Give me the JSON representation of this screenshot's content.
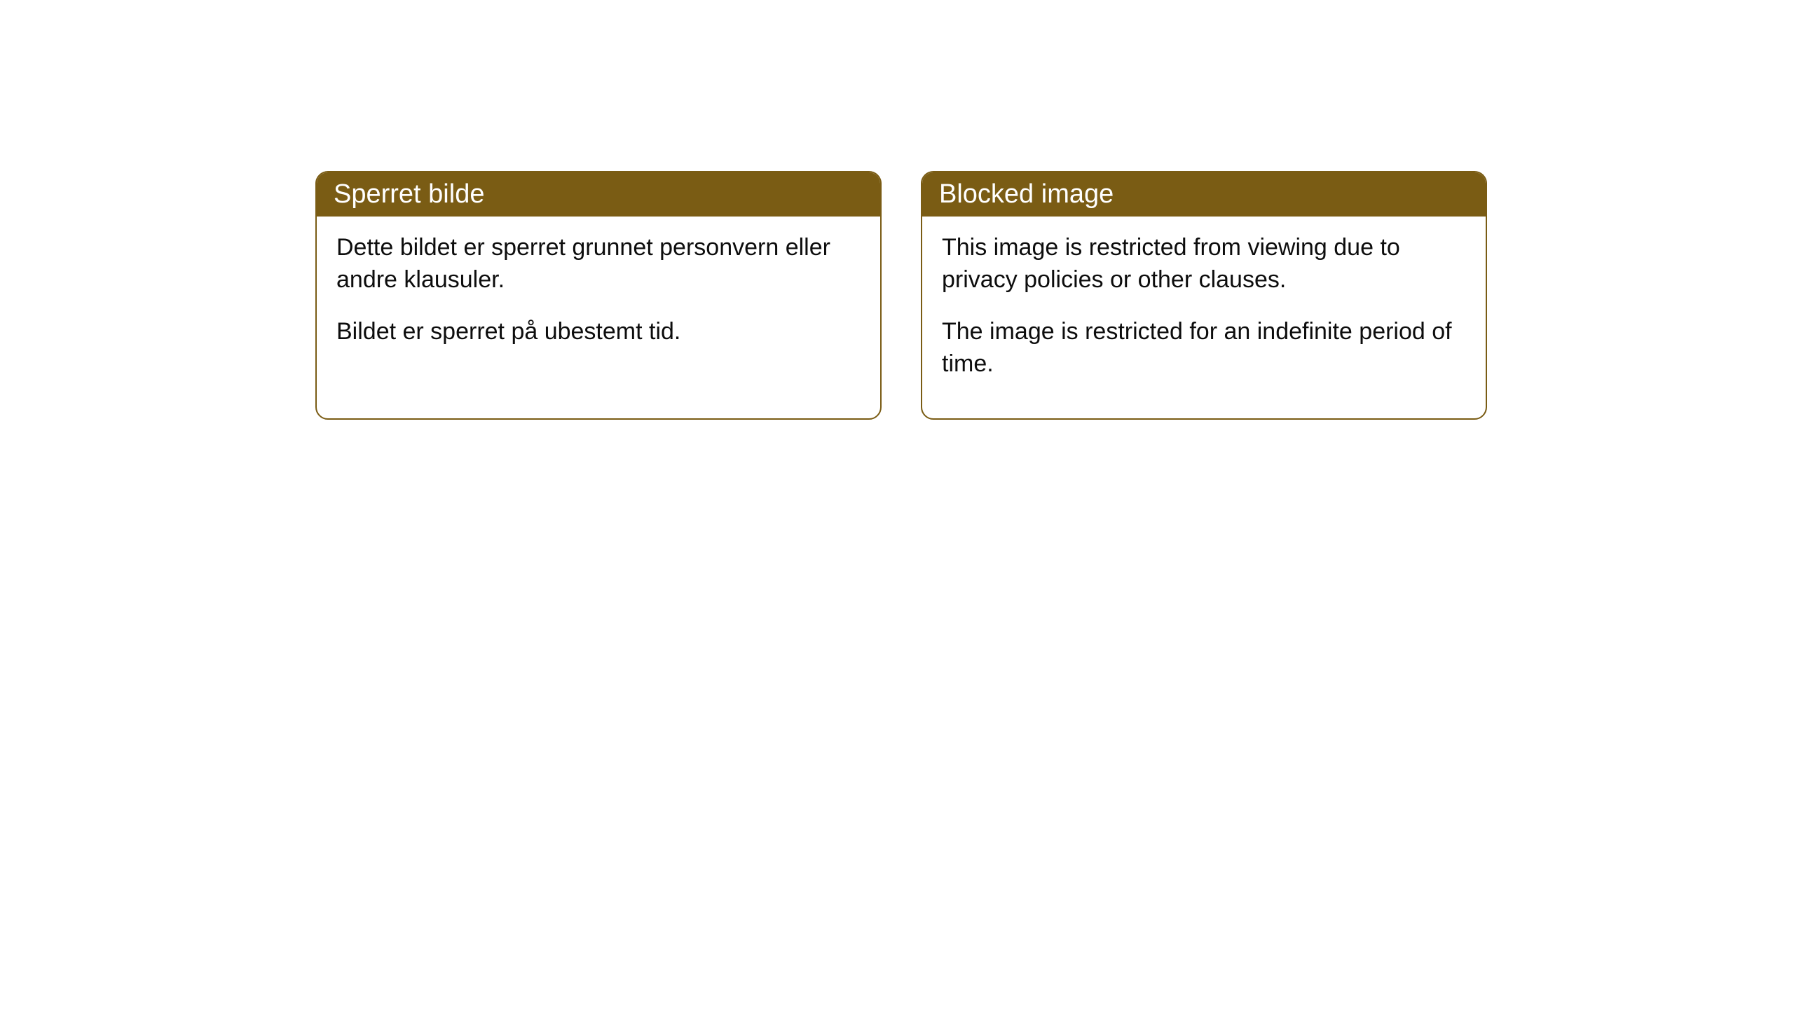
{
  "cards": [
    {
      "title": "Sperret bilde",
      "paragraph1": "Dette bildet er sperret grunnet personvern eller andre klausuler.",
      "paragraph2": "Bildet er sperret på ubestemt tid."
    },
    {
      "title": "Blocked image",
      "paragraph1": "This image is restricted from viewing due to privacy policies or other clauses.",
      "paragraph2": "The image is restricted for an indefinite period of time."
    }
  ],
  "styling": {
    "header_background": "#7a5c14",
    "header_text_color": "#ffffff",
    "border_color": "#7a5c14",
    "body_text_color": "#0d0d0d",
    "card_background": "#ffffff",
    "page_background": "#ffffff",
    "border_radius": 18,
    "title_fontsize": 38,
    "body_fontsize": 34
  }
}
